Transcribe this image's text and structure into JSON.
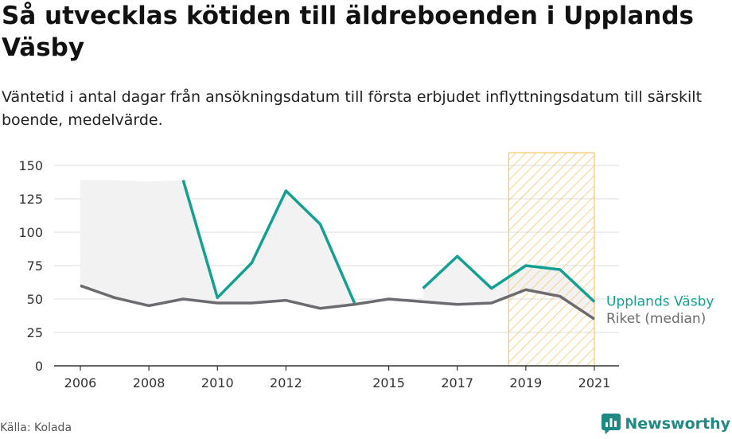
{
  "title": "Så utvecklas kötiden till äldreboenden i Upplands Väsby",
  "subtitle": "Väntetid i antal dagar från ansökningsdatum till första erbjudet inflyttningsdatum till särskilt boende, medelvärde.",
  "source": "Källa: Kolada",
  "brand": "Newsworthy",
  "colors": {
    "series_municipality": "#12a093",
    "series_national": "#6d6a70",
    "highlight": "#f8c66a",
    "area": "#f2f2f2",
    "grid": "#dcdcdc"
  },
  "chart_data": {
    "type": "line",
    "x_ticks": [
      2006,
      2008,
      2010,
      2012,
      2015,
      2017,
      2019,
      2021
    ],
    "y_ticks": [
      0,
      25,
      50,
      75,
      100,
      125,
      150
    ],
    "xlim": [
      2006,
      2021
    ],
    "ylim": [
      0,
      150
    ],
    "grid": true,
    "highlight_range": [
      2018.5,
      2021
    ],
    "series": [
      {
        "name": "Upplands Väsby",
        "x": [
          2006,
          2007,
          2008,
          2009,
          2010,
          2011,
          2012,
          2013,
          2014,
          2015,
          2016,
          2017,
          2018,
          2019,
          2020,
          2021
        ],
        "y": [
          139,
          139,
          138,
          139,
          51,
          77,
          131,
          106,
          47,
          null,
          58,
          82,
          58,
          75,
          72,
          48
        ]
      },
      {
        "name": "Riket (median)",
        "x": [
          2006,
          2007,
          2008,
          2009,
          2010,
          2011,
          2012,
          2013,
          2014,
          2015,
          2016,
          2017,
          2018,
          2019,
          2020,
          2021
        ],
        "y": [
          60,
          51,
          45,
          50,
          47,
          47,
          49,
          43,
          46,
          50,
          48,
          46,
          47,
          57,
          52,
          35
        ]
      }
    ],
    "muni_line_start_index": 3
  }
}
